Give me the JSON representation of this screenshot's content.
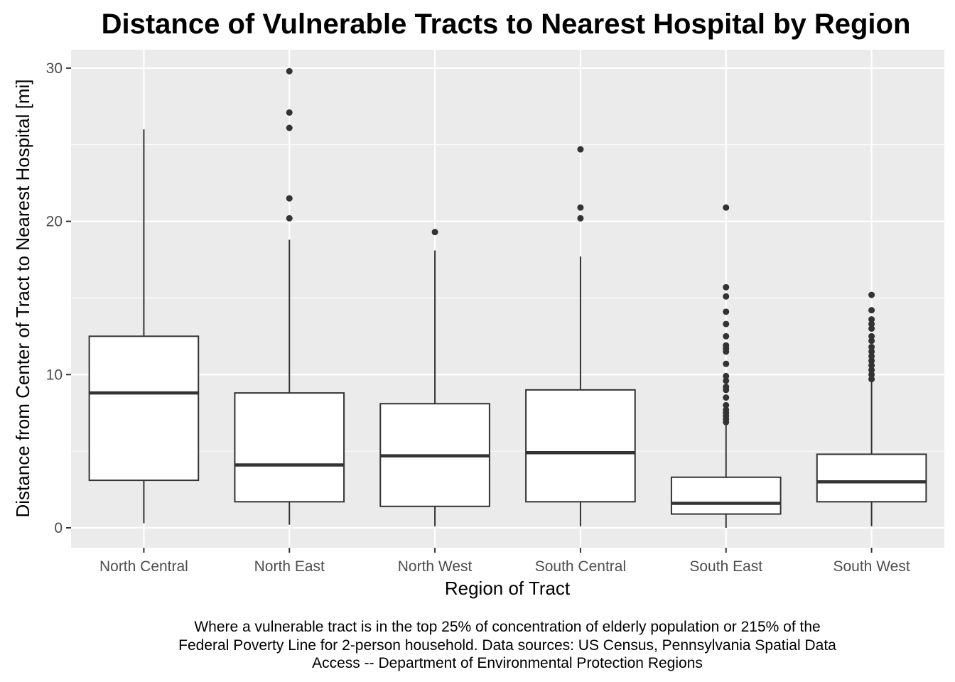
{
  "chart_data": {
    "type": "boxplot",
    "title": "Distance of Vulnerable Tracts to Nearest Hospital by Region",
    "xlabel": "Region of Tract",
    "ylabel": "Distance from Center of Tract to Nearest Hospital [mi]",
    "ylim": [
      -1.3,
      31.2
    ],
    "y_ticks": [
      0,
      10,
      20,
      30
    ],
    "y_tick_labels": [
      "0",
      "10",
      "20",
      "30"
    ],
    "grid": true,
    "legend": "none",
    "categories": [
      "North Central",
      "North East",
      "North West",
      "South Central",
      "South East",
      "South West"
    ],
    "boxes": [
      {
        "category": "North Central",
        "min": 0.3,
        "q1": 3.1,
        "median": 8.8,
        "q3": 12.5,
        "max": 26.0,
        "outliers": []
      },
      {
        "category": "North East",
        "min": 0.2,
        "q1": 1.7,
        "median": 4.1,
        "q3": 8.8,
        "max": 18.8,
        "outliers": [
          20.2,
          21.5,
          26.1,
          27.1,
          29.8
        ]
      },
      {
        "category": "North West",
        "min": 0.1,
        "q1": 1.4,
        "median": 4.7,
        "q3": 8.1,
        "max": 18.1,
        "outliers": [
          19.3
        ]
      },
      {
        "category": "South Central",
        "min": 0.1,
        "q1": 1.7,
        "median": 4.9,
        "q3": 9.0,
        "max": 17.7,
        "outliers": [
          20.2,
          20.9,
          24.7
        ]
      },
      {
        "category": "South East",
        "min": 0.0,
        "q1": 0.9,
        "median": 1.6,
        "q3": 3.3,
        "max": 6.8,
        "outliers": [
          6.9,
          7.1,
          7.3,
          7.5,
          7.7,
          8.0,
          8.5,
          9.0,
          9.2,
          9.6,
          9.9,
          10.7,
          11.5,
          11.7,
          11.9,
          12.5,
          13.3,
          14.1,
          15.1,
          15.7,
          20.9
        ]
      },
      {
        "category": "South West",
        "min": 0.1,
        "q1": 1.7,
        "median": 3.0,
        "q3": 4.8,
        "max": 9.5,
        "outliers": [
          9.7,
          10.0,
          10.3,
          10.6,
          10.9,
          11.2,
          11.5,
          11.8,
          12.2,
          12.5,
          13.0,
          13.3,
          13.6,
          14.2,
          15.2
        ]
      }
    ],
    "colors": {
      "panel": "#ebebeb",
      "grid": "#ffffff",
      "box_fill": "#ffffff",
      "box_line": "#333333",
      "tick": "#333333"
    }
  },
  "caption": {
    "lines": [
      "Where a vulnerable tract is in the top 25% of concentration of elderly population or 215% of the",
      "Federal Poverty Line for 2-person household. Data sources: US Census, Pennsylvania Spatial Data",
      "Access -- Department of Environmental Protection Regions"
    ]
  }
}
